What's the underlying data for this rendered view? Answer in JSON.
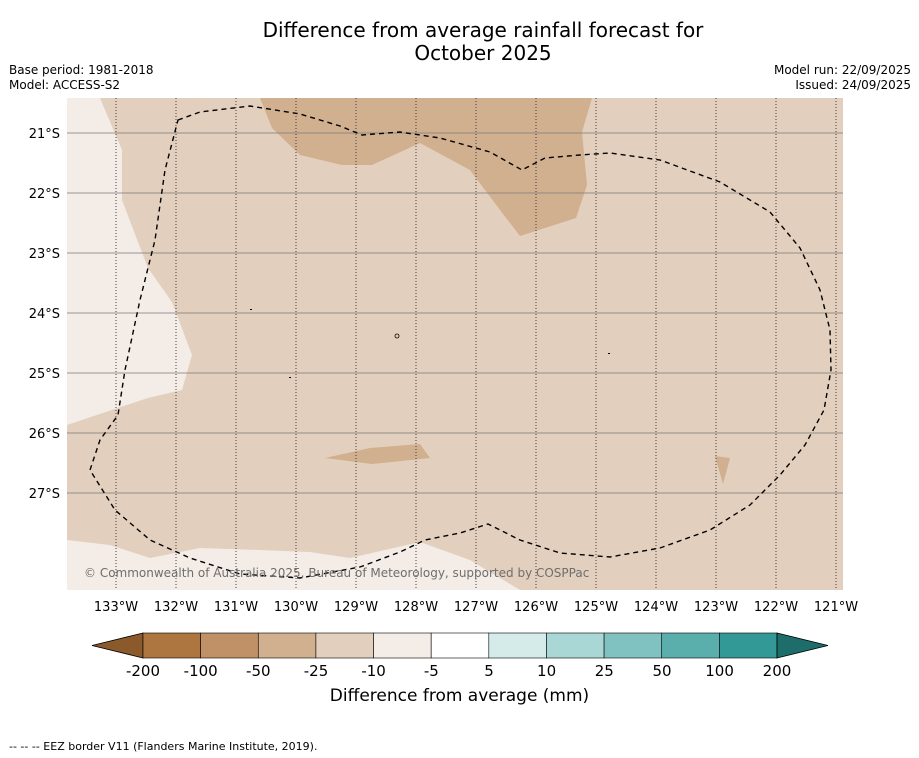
{
  "title": {
    "line1": "Difference from average rainfall forecast for",
    "line2": "October 2025"
  },
  "meta_left": {
    "base_period": "Base period: 1981-2018",
    "model": "Model: ACCESS-S2"
  },
  "meta_right": {
    "model_run": "Model run: 22/09/2025",
    "issued": "Issued: 24/09/2025"
  },
  "map": {
    "lat_labels": [
      "21°S",
      "22°S",
      "23°S",
      "24°S",
      "25°S",
      "26°S",
      "27°S"
    ],
    "lon_labels": [
      "133°W",
      "132°W",
      "131°W",
      "130°W",
      "129°W",
      "128°W",
      "127°W",
      "126°W",
      "125°W",
      "124°W",
      "123°W",
      "122°W",
      "121°W"
    ],
    "copyright": "© Commonwealth of Australia 2025, Bureau of Meteorology, supported by COSPPac",
    "colors": {
      "base_fill": "#e2cfbd",
      "drier_fill": "#d0b08f",
      "near_normal_fill": "#f4ece6"
    }
  },
  "colorbar": {
    "ticks": [
      "-200",
      "-100",
      "-50",
      "-25",
      "-10",
      "-5",
      "5",
      "10",
      "25",
      "50",
      "100",
      "200"
    ],
    "colors": [
      "#8b5a2b",
      "#ad7640",
      "#c09167",
      "#d0b08f",
      "#e2cfbd",
      "#f4ece6",
      "#ffffff",
      "#d4ebea",
      "#a9d7d6",
      "#80c2c1",
      "#5aaeab",
      "#339996",
      "#1d6d6b"
    ],
    "label": "Difference from average (mm)"
  },
  "footnote": "--  --  -- EEZ border V11 (Flanders Marine Institute, 2019)."
}
